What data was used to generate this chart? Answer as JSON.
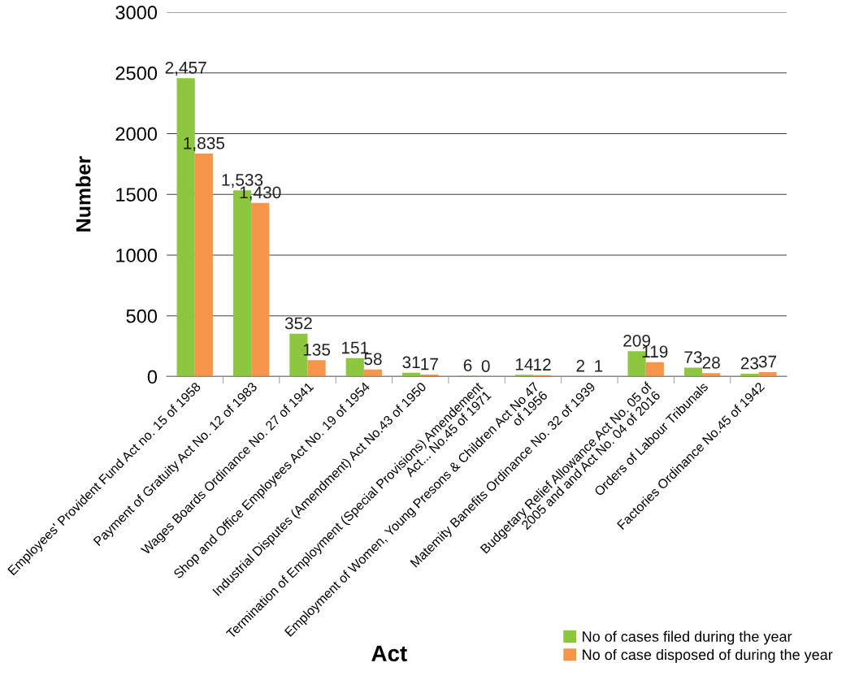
{
  "chart_data": {
    "type": "bar",
    "xlabel": "Act",
    "ylabel": "Number",
    "categories": [
      "Employees' Provident Fund Act no. 15 of 1958",
      "Payment of Gratuity Act No. 12 of 1983",
      "Wages Boards Ordinance No. 27 of 1941",
      "Shop and Office Employees Act No. 19 of 1954",
      "Industrial Disputes (Amendment) Act No.43 of 1950",
      "Termination of Employment (Special Provisions) Amendement\nAct... No.45 of 1971",
      "Employment of Women, Young Presons & Children Act No 47\nof 1956",
      "Matemity Banefits Ordinance No. 32 of 1939",
      "Budgetary Relief Allowance Act No. 05 of\n2005 and and Act No. 04 of 2016",
      "Orders of Labour Tribunals",
      "Factories Ordinance No.45 of 1942"
    ],
    "series": [
      {
        "name": "No of cases filed during the year",
        "color": "#8dc63f",
        "values": [
          2457,
          1533,
          352,
          151,
          31,
          6,
          14,
          2,
          209,
          73,
          23
        ],
        "value_labels": [
          "2,457",
          "1,533",
          "352",
          "151",
          "31",
          "6",
          "14",
          "2",
          "209",
          "73",
          "23"
        ]
      },
      {
        "name": "No of case disposed of during the year",
        "color": "#f7964a",
        "values": [
          1835,
          1430,
          135,
          58,
          17,
          0,
          12,
          1,
          119,
          28,
          37
        ],
        "value_labels": [
          "1,835",
          "1,430",
          "135",
          "58",
          "17",
          "0",
          "12",
          "1",
          "119",
          "28",
          "37"
        ]
      }
    ],
    "ylim": [
      0,
      3000
    ],
    "yticks": [
      0,
      500,
      1000,
      1500,
      2000,
      2500,
      3000
    ],
    "grid": "y",
    "legend": "bottom right"
  }
}
